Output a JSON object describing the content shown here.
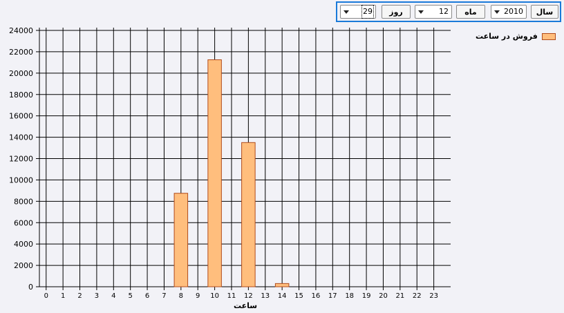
{
  "toolbar": {
    "year_label": "سال",
    "year_value": "2010",
    "month_label": "ماه",
    "month_value": "12",
    "day_label": "روز",
    "day_value": "29"
  },
  "chart_data": {
    "type": "bar",
    "title": "",
    "xlabel": "ساعت",
    "ylabel": "",
    "categories": [
      "0",
      "1",
      "2",
      "3",
      "4",
      "5",
      "6",
      "7",
      "8",
      "9",
      "10",
      "11",
      "12",
      "13",
      "14",
      "15",
      "16",
      "17",
      "18",
      "19",
      "20",
      "21",
      "22",
      "23"
    ],
    "series": [
      {
        "name": "فروش در ساعت",
        "values": [
          0,
          0,
          0,
          0,
          0,
          0,
          0,
          0,
          8750,
          0,
          21250,
          0,
          13500,
          0,
          300,
          0,
          0,
          0,
          0,
          0,
          0,
          0,
          0,
          0
        ]
      }
    ],
    "ylim": [
      0,
      24000
    ],
    "yticks": [
      0,
      2000,
      4000,
      6000,
      8000,
      10000,
      12000,
      14000,
      16000,
      18000,
      20000,
      22000,
      24000
    ],
    "grid": true,
    "legend": "top-right",
    "colors": {
      "bar_fill": "#ffbe7d",
      "bar_stroke": "#b04a1a",
      "grid": "#000000"
    }
  }
}
